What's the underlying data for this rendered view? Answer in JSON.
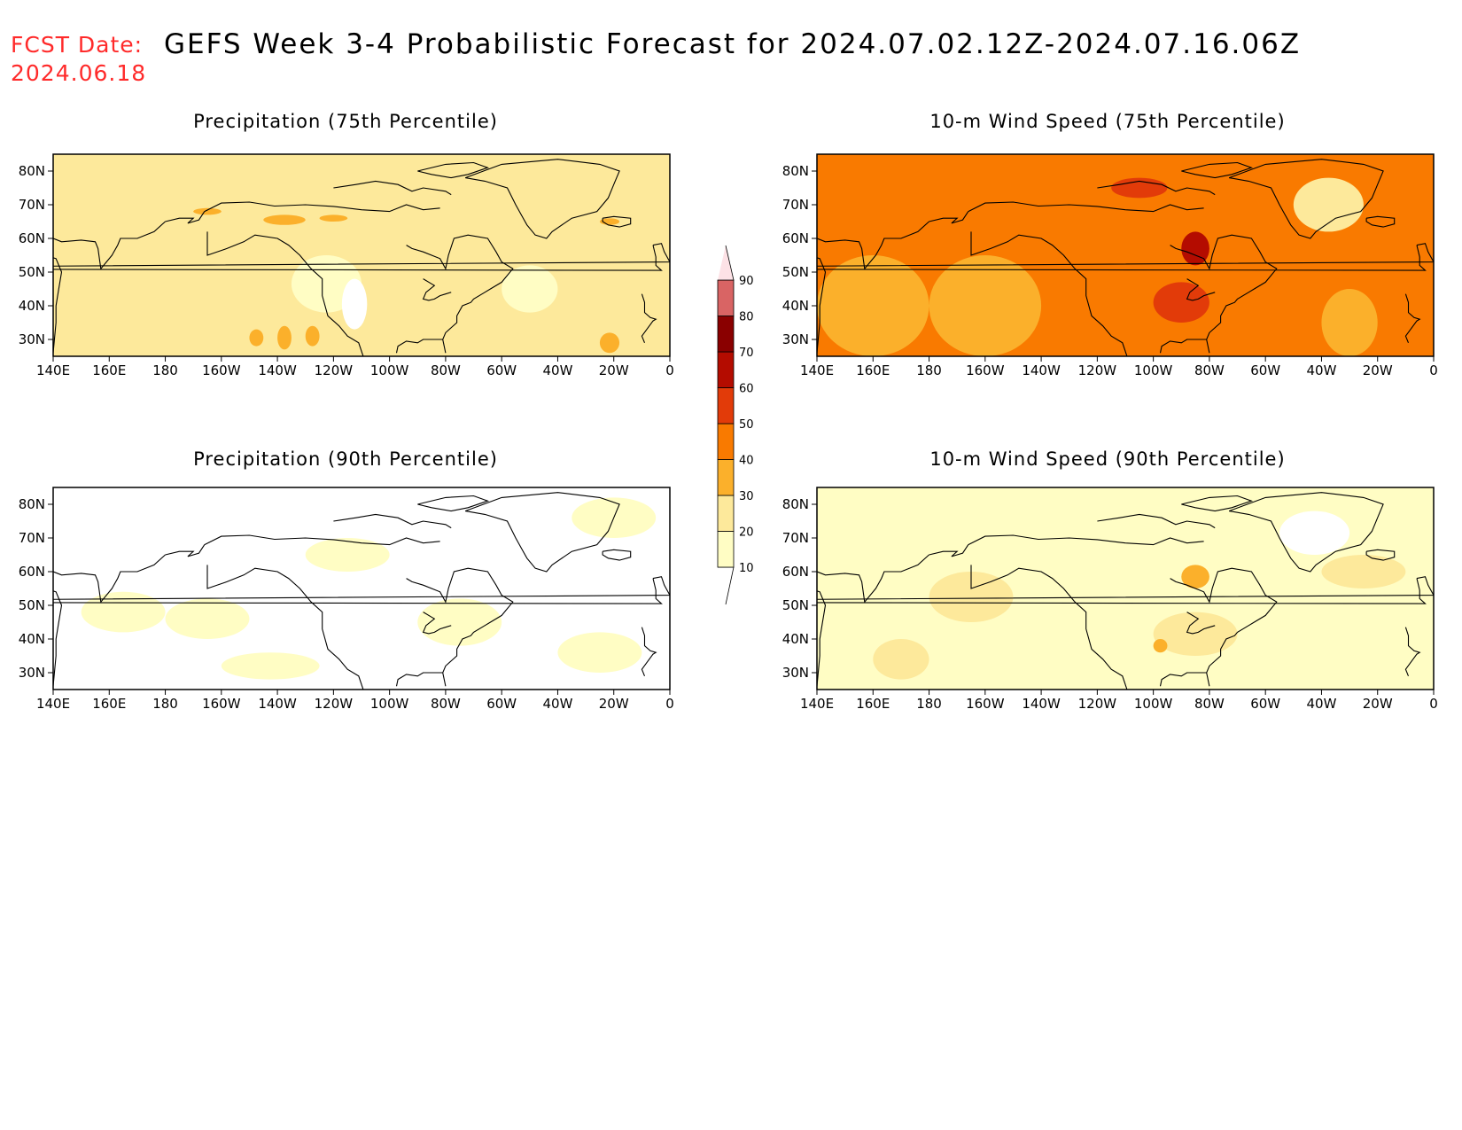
{
  "header": {
    "fcst_label": "FCST Date:",
    "fcst_date": "2024.06.18",
    "title": "GEFS Week 3-4 Probabilistic Forecast for 2024.07.02.12Z-2024.07.16.06Z"
  },
  "colorbar": {
    "levels": [
      10,
      20,
      30,
      40,
      50,
      60,
      70,
      80,
      90
    ],
    "labels": [
      "10",
      "20",
      "30",
      "40",
      "50",
      "60",
      "70",
      "80",
      "90"
    ],
    "colors": [
      "#fffdc4",
      "#fde99b",
      "#fbb02b",
      "#f97a00",
      "#e23b09",
      "#b40c00",
      "#8a0000",
      "#d96464",
      "#f0a4ac",
      "#fde2e6"
    ]
  },
  "chart_data": [
    {
      "type": "heatmap",
      "title": "Precipitation (75th Percentile)",
      "x_ticks": [
        "140E",
        "160E",
        "180",
        "160W",
        "140W",
        "120W",
        "100W",
        "80W",
        "60W",
        "40W",
        "20W",
        "0"
      ],
      "y_ticks": [
        "30N",
        "40N",
        "50N",
        "60N",
        "70N",
        "80N"
      ],
      "xlim": [
        "140E",
        "0"
      ],
      "ylim": [
        25,
        85
      ],
      "base_category": "20-30",
      "regions": [
        {
          "category": "30-40",
          "lon": [
            -170,
            -160
          ],
          "lat": [
            67,
            69
          ]
        },
        {
          "category": "30-40",
          "lon": [
            -145,
            -130
          ],
          "lat": [
            64,
            67
          ]
        },
        {
          "category": "30-40",
          "lon": [
            -125,
            -115
          ],
          "lat": [
            65,
            67
          ]
        },
        {
          "category": "30-40",
          "lon": [
            -150,
            -145
          ],
          "lat": [
            28,
            33
          ]
        },
        {
          "category": "30-40",
          "lon": [
            -140,
            -135
          ],
          "lat": [
            27,
            34
          ]
        },
        {
          "category": "30-40",
          "lon": [
            -130,
            -125
          ],
          "lat": [
            28,
            34
          ]
        },
        {
          "category": "30-40",
          "lon": [
            -25,
            -18
          ],
          "lat": [
            26,
            32
          ]
        },
        {
          "category": "30-40",
          "lon": [
            -25,
            -18
          ],
          "lat": [
            64,
            66
          ]
        },
        {
          "category": "10-20",
          "lon": [
            -135,
            -110
          ],
          "lat": [
            38,
            55
          ]
        },
        {
          "category": "10-20",
          "lon": [
            -60,
            -40
          ],
          "lat": [
            38,
            52
          ]
        },
        {
          "category": "<10",
          "lon": [
            -117,
            -108
          ],
          "lat": [
            33,
            48
          ]
        }
      ]
    },
    {
      "type": "heatmap",
      "title": "10-m Wind Speed (75th Percentile)",
      "x_ticks": [
        "140E",
        "160E",
        "180",
        "160W",
        "140W",
        "120W",
        "100W",
        "80W",
        "60W",
        "40W",
        "20W",
        "0"
      ],
      "y_ticks": [
        "30N",
        "40N",
        "50N",
        "60N",
        "70N",
        "80N"
      ],
      "xlim": [
        "140E",
        "0"
      ],
      "ylim": [
        25,
        85
      ],
      "base_category": "40-50",
      "regions": [
        {
          "category": "30-40",
          "lon": [
            140,
            180
          ],
          "lat": [
            25,
            55
          ]
        },
        {
          "category": "30-40",
          "lon": [
            -180,
            -140
          ],
          "lat": [
            25,
            55
          ]
        },
        {
          "category": "30-40",
          "lon": [
            -40,
            -20
          ],
          "lat": [
            25,
            45
          ]
        },
        {
          "category": "20-30",
          "lon": [
            -50,
            -25
          ],
          "lat": [
            62,
            78
          ]
        },
        {
          "category": "50-60",
          "lon": [
            -100,
            -80
          ],
          "lat": [
            35,
            47
          ]
        },
        {
          "category": "60-70",
          "lon": [
            -90,
            -80
          ],
          "lat": [
            52,
            62
          ]
        },
        {
          "category": "50-60",
          "lon": [
            -115,
            -95
          ],
          "lat": [
            72,
            78
          ]
        }
      ]
    },
    {
      "type": "heatmap",
      "title": "Precipitation (90th Percentile)",
      "x_ticks": [
        "140E",
        "160E",
        "180",
        "160W",
        "140W",
        "120W",
        "100W",
        "80W",
        "60W",
        "40W",
        "20W",
        "0"
      ],
      "y_ticks": [
        "30N",
        "40N",
        "50N",
        "60N",
        "70N",
        "80N"
      ],
      "xlim": [
        "140E",
        "0"
      ],
      "ylim": [
        25,
        85
      ],
      "base_category": "<10",
      "regions": [
        {
          "category": "10-20",
          "lon": [
            150,
            180
          ],
          "lat": [
            42,
            54
          ]
        },
        {
          "category": "10-20",
          "lon": [
            -180,
            -150
          ],
          "lat": [
            40,
            52
          ]
        },
        {
          "category": "10-20",
          "lon": [
            -160,
            -125
          ],
          "lat": [
            28,
            36
          ]
        },
        {
          "category": "10-20",
          "lon": [
            -130,
            -100
          ],
          "lat": [
            60,
            70
          ]
        },
        {
          "category": "10-20",
          "lon": [
            -90,
            -60
          ],
          "lat": [
            38,
            52
          ]
        },
        {
          "category": "10-20",
          "lon": [
            -35,
            -5
          ],
          "lat": [
            70,
            82
          ]
        },
        {
          "category": "10-20",
          "lon": [
            -40,
            -10
          ],
          "lat": [
            30,
            42
          ]
        }
      ]
    },
    {
      "type": "heatmap",
      "title": "10-m Wind Speed (90th Percentile)",
      "x_ticks": [
        "140E",
        "160E",
        "180",
        "160W",
        "140W",
        "120W",
        "100W",
        "80W",
        "60W",
        "40W",
        "20W",
        "0"
      ],
      "y_ticks": [
        "30N",
        "40N",
        "50N",
        "60N",
        "70N",
        "80N"
      ],
      "xlim": [
        "140E",
        "0"
      ],
      "ylim": [
        25,
        85
      ],
      "base_category": "10-20",
      "regions": [
        {
          "category": "20-30",
          "lon": [
            160,
            180
          ],
          "lat": [
            28,
            40
          ]
        },
        {
          "category": "20-30",
          "lon": [
            -180,
            -150
          ],
          "lat": [
            45,
            60
          ]
        },
        {
          "category": "20-30",
          "lon": [
            -100,
            -70
          ],
          "lat": [
            35,
            48
          ]
        },
        {
          "category": "20-30",
          "lon": [
            -40,
            -10
          ],
          "lat": [
            55,
            65
          ]
        },
        {
          "category": "30-40",
          "lon": [
            -90,
            -80
          ],
          "lat": [
            55,
            62
          ]
        },
        {
          "category": "30-40",
          "lon": [
            -100,
            -95
          ],
          "lat": [
            36,
            40
          ]
        },
        {
          "category": "<10",
          "lon": [
            -55,
            -30
          ],
          "lat": [
            65,
            78
          ]
        }
      ]
    }
  ]
}
